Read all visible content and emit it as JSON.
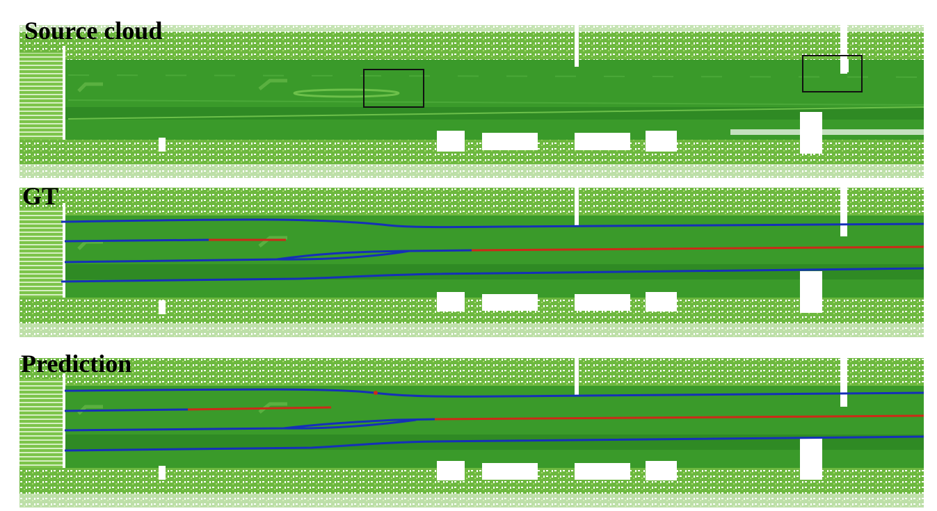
{
  "panels": [
    {
      "label": "Source cloud",
      "has_boxes": true,
      "has_lines": false
    },
    {
      "label": "GT",
      "has_boxes": false,
      "has_lines": true
    },
    {
      "label": "Prediction",
      "has_boxes": false,
      "has_lines": true
    }
  ],
  "colors": {
    "road": "#3a9a2a",
    "road_dark": "#2f8a24",
    "edge_light": "#7cc44a",
    "edge_bright": "#a4d86a",
    "lane_blue": "#1530b8",
    "lane_red": "#cc2a18",
    "box": "#111111"
  }
}
